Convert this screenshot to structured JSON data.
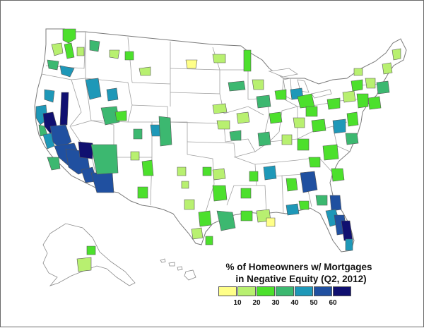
{
  "legend": {
    "title_line1": "% of Homeowners w/ Mortgages",
    "title_line2": "in Negative Equity (Q2, 2012)",
    "colors": [
      "#ffff88",
      "#b8f070",
      "#4ce02c",
      "#3cb870",
      "#1e98b8",
      "#2050a0",
      "#101070"
    ],
    "ticks": [
      "10",
      "20",
      "30",
      "40",
      "50",
      "60"
    ]
  },
  "map": {
    "subject": "contiguous United States, Alaska and Hawaii with state borders; metro areas shaded by negative equity share",
    "fill_levels": {
      "very_low": "#ffff88",
      "low": "#b8f070",
      "medium": "#4ce02c",
      "medium_high": "#3cb870",
      "high": "#1e98b8",
      "very_high": "#2050a0",
      "extreme": "#101070"
    },
    "state_outline_color": "#9a9a9a",
    "metro_outline_color": "#555555"
  }
}
